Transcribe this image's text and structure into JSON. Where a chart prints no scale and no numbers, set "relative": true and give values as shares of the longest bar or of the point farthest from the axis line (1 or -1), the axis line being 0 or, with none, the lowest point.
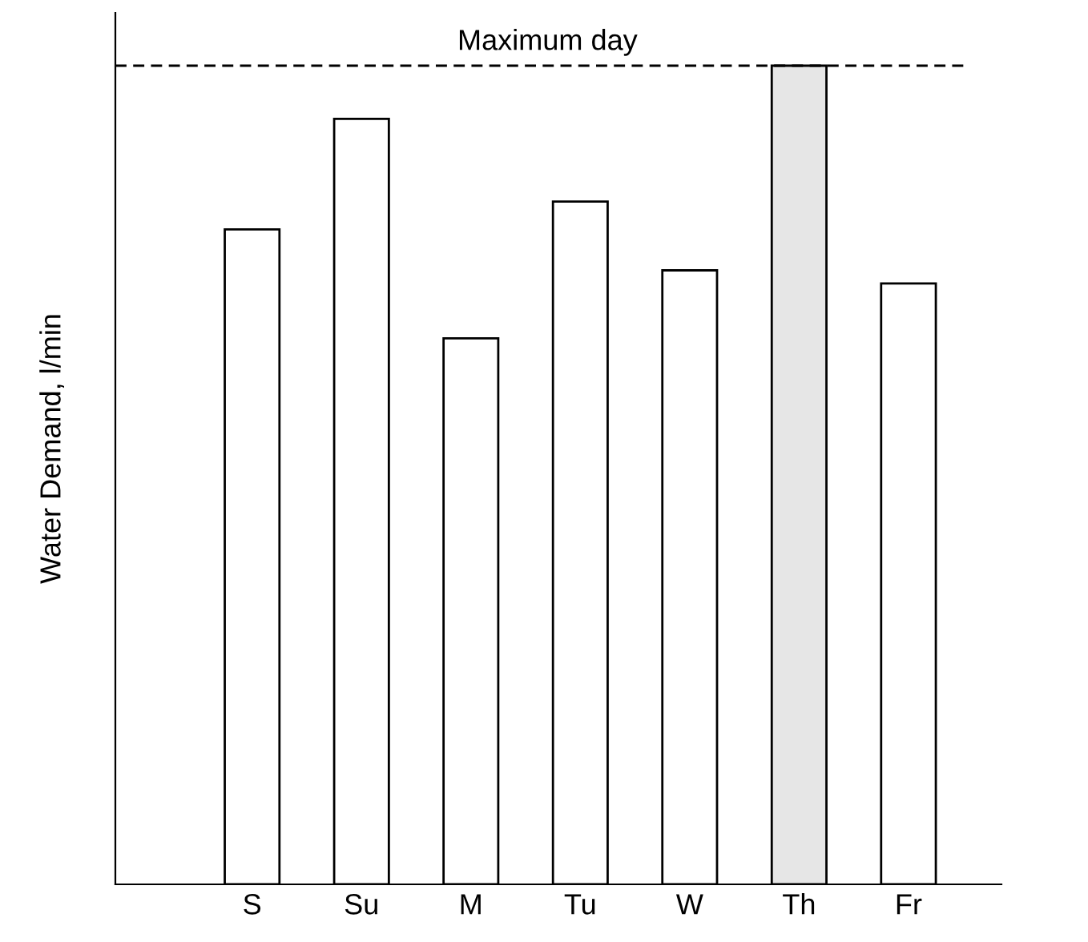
{
  "chart_data": {
    "type": "bar",
    "ylabel": "Water Demand, l/min",
    "relative": true,
    "categories": [
      "S",
      "Su",
      "M",
      "Tu",
      "W",
      "Th",
      "Fr"
    ],
    "values": [
      0.8,
      0.935,
      0.667,
      0.834,
      0.75,
      1,
      0.734
    ],
    "colors": [
      "#ffffff",
      "#ffffff",
      "#ffffff",
      "#ffffff",
      "#ffffff",
      "#e6e6e6",
      "#ffffff"
    ],
    "ref_lines": [
      {
        "axis": "y",
        "value": 1,
        "label": "Maximum day",
        "color": "#000000",
        "line_style": "dashed"
      }
    ],
    "grid": false,
    "legend": false
  }
}
